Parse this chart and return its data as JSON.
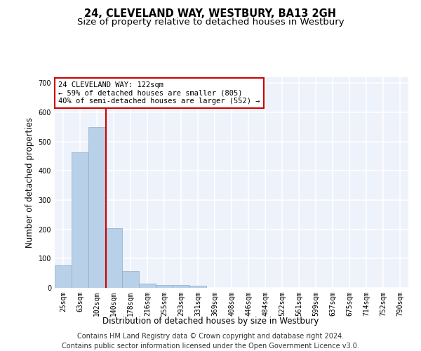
{
  "title": "24, CLEVELAND WAY, WESTBURY, BA13 2GH",
  "subtitle": "Size of property relative to detached houses in Westbury",
  "xlabel": "Distribution of detached houses by size in Westbury",
  "ylabel": "Number of detached properties",
  "categories": [
    "25sqm",
    "63sqm",
    "102sqm",
    "140sqm",
    "178sqm",
    "216sqm",
    "255sqm",
    "293sqm",
    "331sqm",
    "369sqm",
    "408sqm",
    "446sqm",
    "484sqm",
    "522sqm",
    "561sqm",
    "599sqm",
    "637sqm",
    "675sqm",
    "714sqm",
    "752sqm",
    "790sqm"
  ],
  "values": [
    78,
    463,
    550,
    205,
    57,
    15,
    10,
    10,
    8,
    0,
    0,
    0,
    0,
    0,
    0,
    0,
    0,
    0,
    0,
    0,
    0
  ],
  "bar_color": "#b8d0e8",
  "bar_edge_color": "#8aaece",
  "red_line_color": "#cc0000",
  "annotation_box_edge_color": "#cc0000",
  "annotation_box_face_color": "#ffffff",
  "red_line_label": "24 CLEVELAND WAY: 122sqm",
  "annotation_line2": "← 59% of detached houses are smaller (805)",
  "annotation_line3": "40% of semi-detached houses are larger (552) →",
  "ylim": [
    0,
    720
  ],
  "yticks": [
    0,
    100,
    200,
    300,
    400,
    500,
    600,
    700
  ],
  "background_color": "#eef2fb",
  "grid_color": "#ffffff",
  "footer_line1": "Contains HM Land Registry data © Crown copyright and database right 2024.",
  "footer_line2": "Contains public sector information licensed under the Open Government Licence v3.0.",
  "title_fontsize": 10.5,
  "subtitle_fontsize": 9.5,
  "axis_label_fontsize": 8.5,
  "tick_fontsize": 7,
  "annotation_fontsize": 7.5,
  "footer_fontsize": 7
}
